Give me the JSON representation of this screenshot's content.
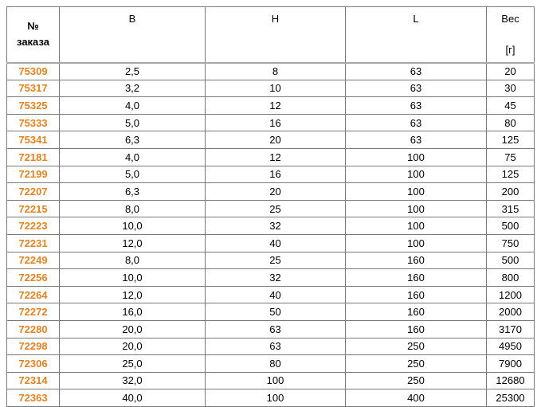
{
  "table": {
    "accent_color": "#e8821e",
    "border_color": "#7a7a7a",
    "headers": {
      "order_line1": "№",
      "order_line2": "заказа",
      "b": "B",
      "h": "H",
      "l": "L",
      "weight": "Вес",
      "weight_unit": "[г]"
    },
    "columns": [
      "№ заказа",
      "B",
      "H",
      "L",
      "Вес [г]"
    ],
    "rows": [
      {
        "order": "75309",
        "b": "2,5",
        "h": "8",
        "l": "63",
        "weight": "20"
      },
      {
        "order": "75317",
        "b": "3,2",
        "h": "10",
        "l": "63",
        "weight": "30"
      },
      {
        "order": "75325",
        "b": "4,0",
        "h": "12",
        "l": "63",
        "weight": "45"
      },
      {
        "order": "75333",
        "b": "5,0",
        "h": "16",
        "l": "63",
        "weight": "80"
      },
      {
        "order": "75341",
        "b": "6,3",
        "h": "20",
        "l": "63",
        "weight": "125"
      },
      {
        "order": "72181",
        "b": "4,0",
        "h": "12",
        "l": "100",
        "weight": "75"
      },
      {
        "order": "72199",
        "b": "5,0",
        "h": "16",
        "l": "100",
        "weight": "125"
      },
      {
        "order": "72207",
        "b": "6,3",
        "h": "20",
        "l": "100",
        "weight": "200"
      },
      {
        "order": "72215",
        "b": "8,0",
        "h": "25",
        "l": "100",
        "weight": "315"
      },
      {
        "order": "72223",
        "b": "10,0",
        "h": "32",
        "l": "100",
        "weight": "500"
      },
      {
        "order": "72231",
        "b": "12,0",
        "h": "40",
        "l": "100",
        "weight": "750"
      },
      {
        "order": "72249",
        "b": "8,0",
        "h": "25",
        "l": "160",
        "weight": "500"
      },
      {
        "order": "72256",
        "b": "10,0",
        "h": "32",
        "l": "160",
        "weight": "800"
      },
      {
        "order": "72264",
        "b": "12,0",
        "h": "40",
        "l": "160",
        "weight": "1200"
      },
      {
        "order": "72272",
        "b": "16,0",
        "h": "50",
        "l": "160",
        "weight": "2000"
      },
      {
        "order": "72280",
        "b": "20,0",
        "h": "63",
        "l": "160",
        "weight": "3170"
      },
      {
        "order": "72298",
        "b": "20,0",
        "h": "63",
        "l": "250",
        "weight": "4950"
      },
      {
        "order": "72306",
        "b": "25,0",
        "h": "80",
        "l": "250",
        "weight": "7900"
      },
      {
        "order": "72314",
        "b": "32,0",
        "h": "100",
        "l": "250",
        "weight": "12680"
      },
      {
        "order": "72363",
        "b": "40,0",
        "h": "100",
        "l": "400",
        "weight": "25300"
      }
    ]
  }
}
